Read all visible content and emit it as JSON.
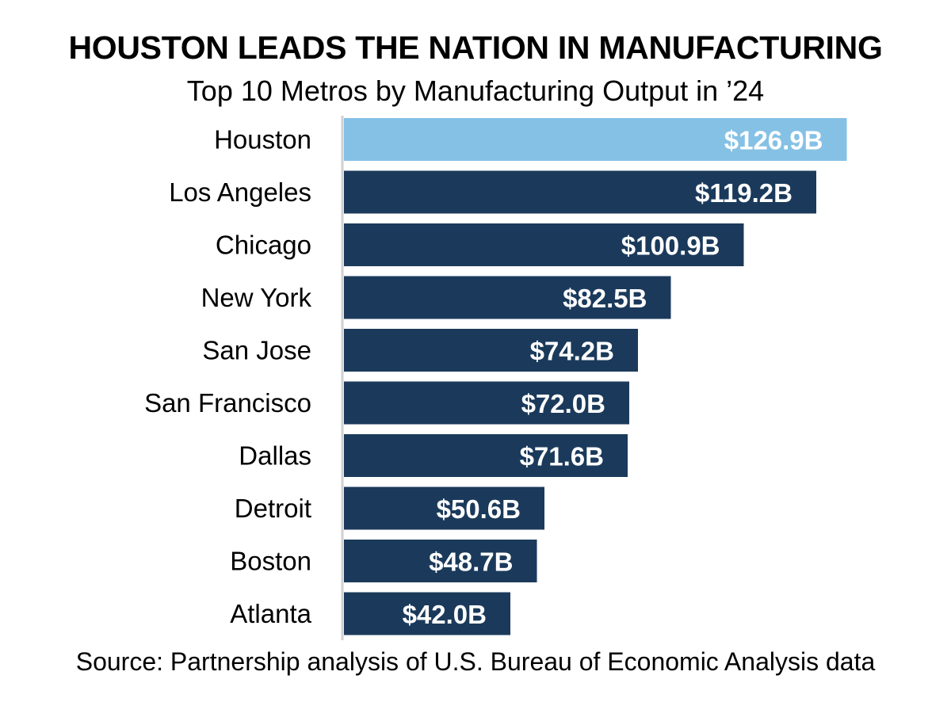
{
  "chart_data": {
    "type": "bar",
    "orientation": "horizontal",
    "title": "HOUSTON LEADS THE NATION IN MANUFACTURING",
    "subtitle": "Top 10 Metros by Manufacturing Output in ’24",
    "categories": [
      "Houston",
      "Los Angeles",
      "Chicago",
      "New York",
      "San Jose",
      "San Francisco",
      "Dallas",
      "Detroit",
      "Boston",
      "Atlanta"
    ],
    "values": [
      126.9,
      119.2,
      100.9,
      82.5,
      74.2,
      72.0,
      71.6,
      50.6,
      48.7,
      42.0
    ],
    "value_labels": [
      "$126.9B",
      "$119.2B",
      "$100.9B",
      "$82.5B",
      "$74.2B",
      "$72.0B",
      "$71.6B",
      "$50.6B",
      "$48.7B",
      "$42.0B"
    ],
    "unit": "$B",
    "highlight_category": "Houston",
    "colors": {
      "highlight": "#85c1e5",
      "bar": "#1b3a5b",
      "axis": "#d0d0d0"
    },
    "grid": false,
    "legend": "none",
    "source": "Source: Partnership analysis of U.S. Bureau of Economic Analysis data"
  }
}
